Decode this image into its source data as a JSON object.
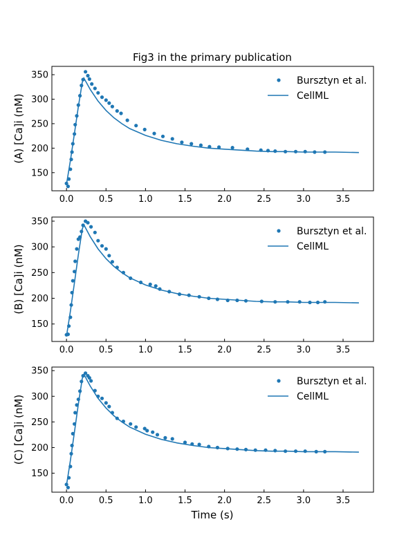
{
  "figure": {
    "title": "Fig3 in the primary publication",
    "xlabel": "Time (s)"
  },
  "style": {
    "series_color": "#1f77b4",
    "axis_color": "#000000"
  },
  "chart_data": [
    {
      "type": "line",
      "ylabel": "(A) [Ca]i (nM)",
      "xlim": [
        -0.185,
        3.885
      ],
      "ylim": [
        113,
        367
      ],
      "xticks": [
        "0.0",
        "0.5",
        "1.0",
        "1.5",
        "2.0",
        "2.5",
        "3.0",
        "3.5"
      ],
      "yticks": [
        "150",
        "200",
        "250",
        "300",
        "350"
      ],
      "legend": {
        "placement": "top-right",
        "entries": [
          "Bursztyn et al.",
          "CellML"
        ]
      },
      "series": [
        {
          "name": "Bursztyn et al.",
          "kind": "scatter",
          "x": [
            0.0,
            0.02,
            0.03,
            0.05,
            0.06,
            0.07,
            0.08,
            0.1,
            0.11,
            0.13,
            0.15,
            0.17,
            0.19,
            0.21,
            0.24,
            0.27,
            0.29,
            0.32,
            0.36,
            0.4,
            0.45,
            0.5,
            0.54,
            0.58,
            0.64,
            0.69,
            0.77,
            0.88,
            0.99,
            1.11,
            1.22,
            1.34,
            1.46,
            1.58,
            1.7,
            1.81,
            1.93,
            2.1,
            2.29,
            2.46,
            2.55,
            2.64,
            2.77,
            2.9,
            3.02,
            3.14,
            3.27
          ],
          "y": [
            128,
            122,
            137,
            157,
            177,
            192,
            209,
            229,
            248,
            266,
            288,
            307,
            328,
            340,
            356,
            348,
            341,
            331,
            322,
            313,
            304,
            298,
            292,
            285,
            276,
            271,
            257,
            246,
            238,
            230,
            224,
            219,
            212,
            209,
            206,
            203,
            202,
            201,
            198,
            196,
            195,
            194,
            193,
            193,
            193,
            192,
            192
          ]
        },
        {
          "name": "CellML",
          "kind": "line",
          "x": [
            0.0,
            0.05,
            0.1,
            0.15,
            0.2,
            0.22,
            0.3,
            0.4,
            0.5,
            0.6,
            0.7,
            0.8,
            1.0,
            1.2,
            1.4,
            1.6,
            1.8,
            2.0,
            2.2,
            2.4,
            2.6,
            2.8,
            3.0,
            3.2,
            3.4,
            3.7
          ],
          "y": [
            126,
            175,
            230,
            285,
            335,
            343,
            320,
            296,
            277,
            262,
            250,
            240,
            226,
            216,
            209,
            204,
            200,
            198,
            196,
            194,
            193,
            193,
            192,
            192,
            192,
            191
          ]
        }
      ]
    },
    {
      "type": "line",
      "ylabel": "(B) [Ca]i (nM)",
      "xlim": [
        -0.185,
        3.885
      ],
      "ylim": [
        116,
        358
      ],
      "xticks": [
        "0.0",
        "0.5",
        "1.0",
        "1.5",
        "2.0",
        "2.5",
        "3.0",
        "3.5"
      ],
      "yticks": [
        "150",
        "200",
        "250",
        "300",
        "350"
      ],
      "legend": {
        "placement": "top-right",
        "entries": [
          "Bursztyn et al.",
          "CellML"
        ]
      },
      "series": [
        {
          "name": "Bursztyn et al.",
          "kind": "scatter",
          "x": [
            0.0,
            0.02,
            0.03,
            0.05,
            0.06,
            0.07,
            0.08,
            0.1,
            0.11,
            0.13,
            0.15,
            0.17,
            0.19,
            0.21,
            0.24,
            0.27,
            0.31,
            0.36,
            0.4,
            0.45,
            0.5,
            0.54,
            0.58,
            0.64,
            0.72,
            0.81,
            0.94,
            1.06,
            1.13,
            1.18,
            1.3,
            1.43,
            1.55,
            1.68,
            1.8,
            1.91,
            2.04,
            2.16,
            2.27,
            2.47,
            2.64,
            2.8,
            2.95,
            3.08,
            3.18,
            3.27
          ],
          "y": [
            129,
            130,
            146,
            163,
            187,
            211,
            234,
            252,
            272,
            296,
            315,
            319,
            330,
            342,
            350,
            347,
            339,
            328,
            312,
            302,
            296,
            283,
            271,
            260,
            250,
            239,
            231,
            227,
            224,
            218,
            213,
            208,
            206,
            203,
            200,
            198,
            196,
            196,
            195,
            194,
            193,
            193,
            193,
            192,
            192,
            193
          ]
        },
        {
          "name": "CellML",
          "kind": "line",
          "x": [
            0.0,
            0.05,
            0.1,
            0.15,
            0.2,
            0.22,
            0.3,
            0.4,
            0.5,
            0.6,
            0.7,
            0.8,
            1.0,
            1.2,
            1.4,
            1.6,
            1.8,
            2.0,
            2.2,
            2.4,
            2.6,
            2.8,
            3.0,
            3.2,
            3.4,
            3.7
          ],
          "y": [
            126,
            175,
            230,
            285,
            335,
            343,
            320,
            296,
            277,
            262,
            250,
            240,
            226,
            216,
            209,
            204,
            200,
            198,
            196,
            194,
            193,
            193,
            192,
            192,
            192,
            191
          ]
        }
      ]
    },
    {
      "type": "line",
      "ylabel": "(C) [Ca]i (nM)",
      "xlim": [
        -0.185,
        3.885
      ],
      "ylim": [
        113,
        357
      ],
      "xticks": [
        "0.0",
        "0.5",
        "1.0",
        "1.5",
        "2.0",
        "2.5",
        "3.0",
        "3.5"
      ],
      "yticks": [
        "150",
        "200",
        "250",
        "300",
        "350"
      ],
      "legend": {
        "placement": "top-right",
        "entries": [
          "Bursztyn et al.",
          "CellML"
        ]
      },
      "series": [
        {
          "name": "Bursztyn et al.",
          "kind": "scatter",
          "x": [
            0.0,
            0.02,
            0.03,
            0.05,
            0.06,
            0.07,
            0.08,
            0.1,
            0.11,
            0.13,
            0.15,
            0.17,
            0.19,
            0.21,
            0.24,
            0.27,
            0.29,
            0.31,
            0.36,
            0.4,
            0.45,
            0.5,
            0.54,
            0.58,
            0.64,
            0.72,
            0.81,
            0.88,
            0.99,
            1.02,
            1.09,
            1.15,
            1.25,
            1.34,
            1.5,
            1.59,
            1.68,
            1.8,
            1.91,
            2.04,
            2.16,
            2.27,
            2.39,
            2.52,
            2.64,
            2.77,
            2.9,
            3.02,
            3.16,
            3.27
          ],
          "y": [
            128,
            122,
            141,
            163,
            188,
            204,
            227,
            246,
            268,
            283,
            294,
            310,
            329,
            340,
            345,
            340,
            336,
            330,
            311,
            300,
            296,
            287,
            280,
            268,
            257,
            251,
            246,
            240,
            237,
            233,
            230,
            225,
            219,
            217,
            210,
            207,
            206,
            202,
            200,
            198,
            197,
            196,
            195,
            195,
            194,
            193,
            193,
            193,
            192,
            192
          ]
        },
        {
          "name": "CellML",
          "kind": "line",
          "x": [
            0.0,
            0.05,
            0.1,
            0.15,
            0.2,
            0.22,
            0.3,
            0.4,
            0.5,
            0.6,
            0.7,
            0.8,
            1.0,
            1.2,
            1.4,
            1.6,
            1.8,
            2.0,
            2.2,
            2.4,
            2.6,
            2.8,
            3.0,
            3.2,
            3.4,
            3.7
          ],
          "y": [
            126,
            175,
            230,
            285,
            335,
            343,
            320,
            296,
            277,
            262,
            250,
            240,
            226,
            216,
            209,
            204,
            200,
            198,
            196,
            194,
            193,
            193,
            192,
            192,
            192,
            191
          ]
        }
      ]
    }
  ]
}
